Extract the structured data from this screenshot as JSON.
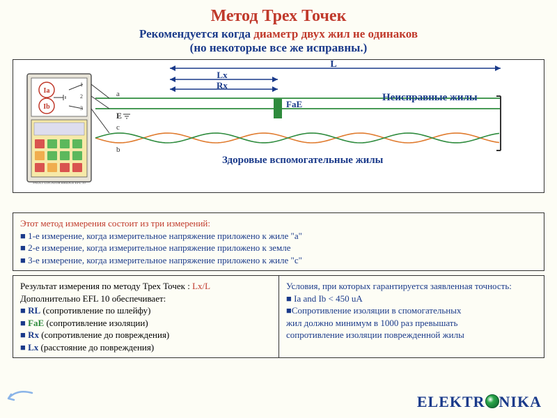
{
  "title": {
    "text": "Метод Трех Точек",
    "color": "#c0392b"
  },
  "subtitle_a": "Рекомендуется когда ",
  "subtitle_bold": {
    "text": "диаметр двух жил не одинаков",
    "color": "#c0392b"
  },
  "subtitle2": {
    "text": "(но некоторые все же исправны.)",
    "color": "#1a3a8a"
  },
  "subtitle_color": "#1a3a8a",
  "diagram": {
    "L_label": "L",
    "Lx_label": "Lx",
    "Rx_label": "Rx",
    "FaE_label": "FaE",
    "fault_label": "Неисправные жилы",
    "aux_label": "Здоровые вспомогательные жилы",
    "Ia": "Ia",
    "Ib": "Ib",
    "E_label": "E",
    "wire_a": "a",
    "wire_c": "c",
    "wire_b": "b",
    "numbers": [
      "1",
      "2",
      "3"
    ],
    "colors": {
      "label": "#1a3a8a",
      "arrow": "#1a3a8a",
      "fault_wire": "#2e8b3d",
      "aux_wire": "#e07b2e",
      "fae_box": "#2e8b3d",
      "Ia": "#c0392b",
      "Ib": "#c0392b",
      "meter_body": "#e8e4d8",
      "meter_outline": "#555",
      "btn_red": "#d9534f",
      "btn_green": "#5cb85c",
      "btn_yellow": "#f0ad4e"
    },
    "device_caption": "FAULT LOCATOR BRIDGE    EFL 10"
  },
  "method": {
    "header": {
      "text": "Этот метод измерения состоит из три измерений:",
      "color": "#c0392b"
    },
    "items": [
      "1-е измерение, когда измерительное напряжение приложено к жиле \"a\"",
      "2-е измерение, когда измерительное напряжение приложено к земле",
      "3-е измерение, когда измерительное напряжение приложено к жиле \"c\""
    ],
    "bullet_color": "#1a3a8a",
    "text_color": "#1a3a8a"
  },
  "result": {
    "line1_a": "Результат измерения по методу Трех Точек : ",
    "line1_b": {
      "text": "Lx/L",
      "color": "#c0392b"
    },
    "line2": "Дополнительно EFL 10 обеспечивает:",
    "items": [
      {
        "label": "RL",
        "desc": "(сопротивление по шлейфу)",
        "color": "#1a3a8a"
      },
      {
        "label": "FaE",
        "desc": "(сопротивление изоляции)",
        "color": "#2e8b3d"
      },
      {
        "label": "Rx",
        "desc": "(сопротивление до повреждения)",
        "color": "#1a3a8a"
      },
      {
        "label": "Lx",
        "desc": "(расстояние до повреждения)",
        "color": "#1a3a8a"
      }
    ]
  },
  "cond": {
    "header": "Условия, при которых гарантируется заявленная точность:",
    "items": [
      " Ia and Ib < 450 uA",
      "Сопротивление изоляции в спомогательных"
    ],
    "tail": [
      " жил должно минимум в 1000 раз превышать",
      " сопротивление изоляции поврежденной жилы"
    ],
    "text_color": "#1a3a8a"
  },
  "brand": {
    "a": "ELEKTR",
    "b": "NIKA",
    "color": "#1a3a8a"
  }
}
